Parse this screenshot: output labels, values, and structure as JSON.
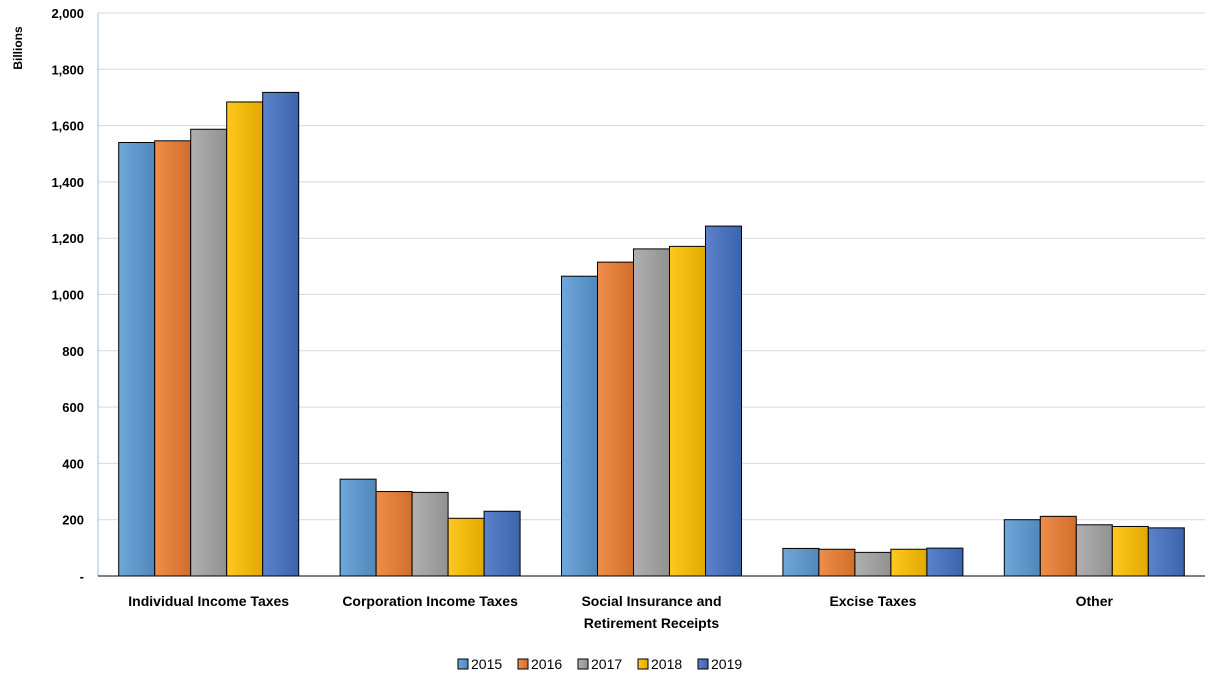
{
  "chart_data": {
    "type": "bar",
    "title": "",
    "xlabel": "",
    "ylabel": "Billions",
    "ylim": [
      0,
      2000
    ],
    "yticks": [
      0,
      200,
      400,
      600,
      800,
      1000,
      1200,
      1400,
      1600,
      1800,
      2000
    ],
    "ytick_labels": [
      "-",
      "200",
      "400",
      "600",
      "800",
      "1,000",
      "1,200",
      "1,400",
      "1,600",
      "1,800",
      "2,000"
    ],
    "grid": true,
    "legend_position": "bottom",
    "categories": [
      [
        "Individual Income Taxes"
      ],
      [
        "Corporation Income Taxes"
      ],
      [
        "Social Insurance and",
        "Retirement Receipts"
      ],
      [
        "Excise Taxes"
      ],
      [
        "Other"
      ]
    ],
    "series": [
      {
        "name": "2015",
        "color": "#5B9BD5",
        "values": [
          1540,
          344,
          1065,
          98,
          200
        ]
      },
      {
        "name": "2016",
        "color": "#ED7D31",
        "values": [
          1546,
          300,
          1115,
          95,
          212
        ]
      },
      {
        "name": "2017",
        "color": "#A5A5A5",
        "values": [
          1587,
          297,
          1162,
          84,
          182
        ]
      },
      {
        "name": "2018",
        "color": "#FFC000",
        "values": [
          1684,
          205,
          1171,
          95,
          176
        ]
      },
      {
        "name": "2019",
        "color": "#4472C4",
        "values": [
          1718,
          230,
          1243,
          99,
          171
        ]
      }
    ]
  }
}
